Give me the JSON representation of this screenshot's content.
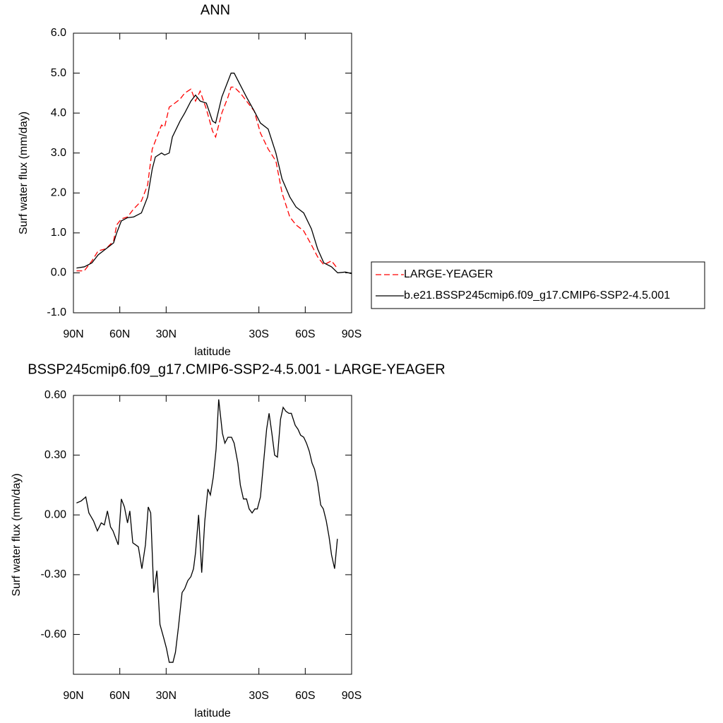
{
  "chart_data": [
    {
      "type": "line",
      "title": "ANN",
      "xlabel": "latitude",
      "ylabel": "Surf water flux (mm/day)",
      "xlim": [
        90,
        -90
      ],
      "ylim": [
        -1,
        6
      ],
      "xticks": [
        {
          "value": 90,
          "label": "90N"
        },
        {
          "value": 60,
          "label": "60N"
        },
        {
          "value": 30,
          "label": "30N"
        },
        {
          "value": -30,
          "label": "30S"
        },
        {
          "value": -60,
          "label": "60S"
        },
        {
          "value": -90,
          "label": "90S"
        }
      ],
      "yticks": [
        {
          "value": 6,
          "label": "6.0"
        },
        {
          "value": 5,
          "label": "5.0"
        },
        {
          "value": 4,
          "label": "4.0"
        },
        {
          "value": 3,
          "label": "3.0"
        },
        {
          "value": 2,
          "label": "2.0"
        },
        {
          "value": 1,
          "label": "1.0"
        },
        {
          "value": 0,
          "label": "0.0"
        },
        {
          "value": -1,
          "label": "-1.0"
        }
      ],
      "legend": "right",
      "x": [
        88,
        83,
        78,
        74,
        69,
        64,
        62,
        59,
        55,
        51,
        46,
        42,
        39,
        37,
        33,
        31,
        28,
        26,
        21,
        18,
        14,
        11,
        8,
        4,
        0,
        -2,
        -6,
        -10,
        -12,
        -14,
        -18,
        -22,
        -27,
        -31,
        -36,
        -41,
        -45,
        -50,
        -54,
        -59,
        -64,
        -68,
        -72,
        -77,
        -81,
        -86,
        -90
      ],
      "series": [
        {
          "name": "LARGE-YEAGER",
          "color": "#ff0000",
          "dash": true,
          "values": [
            0.05,
            0.05,
            0.3,
            0.55,
            0.6,
            0.8,
            1.2,
            1.35,
            1.4,
            1.6,
            1.8,
            2.2,
            3.1,
            3.3,
            3.7,
            3.65,
            4.15,
            4.2,
            4.35,
            4.5,
            4.6,
            4.3,
            4.55,
            4.1,
            3.55,
            3.4,
            4.0,
            4.4,
            4.65,
            4.65,
            4.5,
            4.3,
            4.05,
            3.5,
            3.1,
            2.8,
            2.0,
            1.4,
            1.2,
            1.05,
            0.7,
            0.4,
            0.2,
            0.3,
            0.1,
            null,
            null
          ]
        },
        {
          "name": "b.e21.BSSP245cmip6.f09_g17.CMIP6-SSP2-4.5.001",
          "color": "#000000",
          "dash": false,
          "values": [
            0.12,
            0.15,
            0.25,
            0.45,
            0.6,
            0.75,
            1.0,
            1.3,
            1.38,
            1.4,
            1.5,
            1.9,
            2.6,
            2.9,
            3.0,
            2.95,
            3.0,
            3.4,
            3.8,
            4.0,
            4.3,
            4.45,
            4.3,
            4.25,
            3.8,
            3.75,
            4.4,
            4.8,
            5.0,
            5.0,
            4.7,
            4.4,
            4.05,
            3.75,
            3.6,
            3.0,
            2.35,
            1.9,
            1.65,
            1.5,
            1.1,
            0.6,
            0.25,
            0.15,
            0.0,
            0.02,
            -0.02
          ]
        }
      ]
    },
    {
      "type": "line",
      "title": "BSSP245cmip6.f09_g17.CMIP6-SSP2-4.5.001 - LARGE-YEAGER",
      "xlabel": "latitude",
      "ylabel": "Surf water flux (mm/day)",
      "xlim": [
        90,
        -90
      ],
      "ylim": [
        -0.8,
        0.6
      ],
      "xticks": [
        {
          "value": 90,
          "label": "90N"
        },
        {
          "value": 60,
          "label": "60N"
        },
        {
          "value": 30,
          "label": "30N"
        },
        {
          "value": -30,
          "label": "30S"
        },
        {
          "value": -60,
          "label": "60S"
        },
        {
          "value": -90,
          "label": "90S"
        }
      ],
      "yticks": [
        {
          "value": 0.6,
          "label": "0.60"
        },
        {
          "value": 0.3,
          "label": "0.30"
        },
        {
          "value": 0,
          "label": "0.00"
        },
        {
          "value": -0.3,
          "label": "-0.30"
        },
        {
          "value": -0.6,
          "label": "-0.60"
        }
      ],
      "x": [
        88,
        85,
        82,
        80,
        77,
        74.5,
        72,
        70,
        68,
        66,
        64.4,
        62,
        61,
        59,
        57,
        55,
        53.5,
        51.6,
        48,
        45.7,
        43.4,
        41.6,
        40,
        38,
        36,
        34,
        31.5,
        29.8,
        28,
        25.6,
        24,
        22,
        19.7,
        18,
        16,
        14,
        12.3,
        11,
        9,
        7,
        5,
        3,
        1.4,
        -0.5,
        -2.3,
        -4,
        -6.4,
        -8,
        -10,
        -12.3,
        -14,
        -16.4,
        -18,
        -20,
        -22,
        -23.7,
        -25.6,
        -27.4,
        -29,
        -31,
        -33,
        -35,
        -36.6,
        -38.4,
        -40.2,
        -42,
        -44,
        -45.7,
        -47.5,
        -49.4,
        -51,
        -53.5,
        -55.3,
        -57,
        -59,
        -60.8,
        -62.6,
        -64.4,
        -66,
        -68,
        -70,
        -71.7,
        -73.6,
        -75.4,
        -77,
        -79,
        -80.8
      ],
      "series": [
        {
          "color": "#000000",
          "dash": false,
          "values": [
            0.06,
            0.07,
            0.09,
            0.01,
            -0.03,
            -0.08,
            -0.04,
            -0.05,
            0.02,
            -0.06,
            -0.08,
            -0.13,
            -0.15,
            0.08,
            0.04,
            -0.04,
            0.02,
            -0.14,
            -0.16,
            -0.27,
            -0.15,
            0.04,
            0.01,
            -0.39,
            -0.28,
            -0.55,
            -0.62,
            -0.67,
            -0.74,
            -0.74,
            -0.69,
            -0.56,
            -0.39,
            -0.37,
            -0.33,
            -0.31,
            -0.27,
            -0.19,
            0.0,
            -0.29,
            -0.03,
            0.13,
            0.1,
            0.19,
            0.33,
            0.58,
            0.41,
            0.36,
            0.39,
            0.39,
            0.36,
            0.26,
            0.15,
            0.08,
            0.08,
            0.03,
            0.01,
            0.03,
            0.03,
            0.09,
            0.26,
            0.43,
            0.51,
            0.41,
            0.3,
            0.29,
            0.48,
            0.54,
            0.52,
            0.51,
            0.51,
            0.45,
            0.43,
            0.4,
            0.39,
            0.36,
            0.32,
            0.26,
            0.23,
            0.16,
            0.05,
            0.03,
            -0.03,
            -0.11,
            -0.2,
            -0.27,
            -0.12
          ]
        }
      ]
    }
  ]
}
